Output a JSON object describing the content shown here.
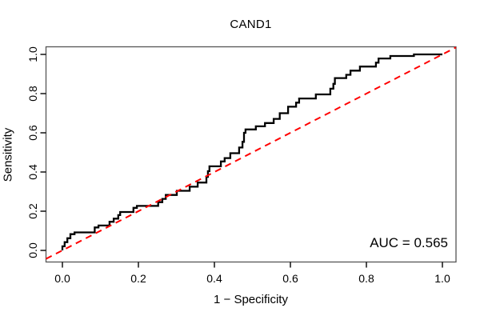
{
  "figure": {
    "title": "CAND1",
    "xlabel": "1 − Specificity",
    "ylabel": "Sensitivity",
    "auc_label": "AUC = 0.565"
  },
  "chart_data": {
    "type": "line",
    "subtype": "roc-curve-step",
    "title": "CAND1",
    "xlabel": "1 − Specificity",
    "ylabel": "Sensitivity",
    "xlim": [
      0,
      1
    ],
    "ylim": [
      0,
      1
    ],
    "grid": false,
    "legend": "none",
    "x_ticks": [
      0.0,
      0.2,
      0.4,
      0.6,
      0.8,
      1.0
    ],
    "y_ticks": [
      0.0,
      0.2,
      0.4,
      0.6,
      0.8,
      1.0
    ],
    "x_tick_labels": [
      "0.0",
      "0.2",
      "0.4",
      "0.6",
      "0.8",
      "1.0"
    ],
    "y_tick_labels": [
      "0.0",
      "0.2",
      "0.4",
      "0.6",
      "0.8",
      "1.0"
    ],
    "annotations": [
      {
        "text": "AUC = 0.565",
        "x": 1.0,
        "y": 0.05,
        "align": "right"
      }
    ],
    "auc": 0.565,
    "series": [
      {
        "name": "ROC curve (CAND1)",
        "style": "step",
        "color": "#000000",
        "line_width": 2.3,
        "dash": null,
        "points": [
          [
            0.0,
            0.0
          ],
          [
            0.0,
            0.021
          ],
          [
            0.006,
            0.021
          ],
          [
            0.006,
            0.042
          ],
          [
            0.013,
            0.042
          ],
          [
            0.013,
            0.062
          ],
          [
            0.021,
            0.062
          ],
          [
            0.021,
            0.083
          ],
          [
            0.032,
            0.083
          ],
          [
            0.032,
            0.092
          ],
          [
            0.085,
            0.092
          ],
          [
            0.085,
            0.117
          ],
          [
            0.095,
            0.117
          ],
          [
            0.095,
            0.127
          ],
          [
            0.124,
            0.127
          ],
          [
            0.124,
            0.146
          ],
          [
            0.135,
            0.146
          ],
          [
            0.135,
            0.162
          ],
          [
            0.147,
            0.162
          ],
          [
            0.147,
            0.18
          ],
          [
            0.152,
            0.18
          ],
          [
            0.152,
            0.196
          ],
          [
            0.187,
            0.196
          ],
          [
            0.187,
            0.217
          ],
          [
            0.196,
            0.217
          ],
          [
            0.196,
            0.227
          ],
          [
            0.252,
            0.227
          ],
          [
            0.252,
            0.246
          ],
          [
            0.263,
            0.246
          ],
          [
            0.263,
            0.263
          ],
          [
            0.272,
            0.263
          ],
          [
            0.272,
            0.283
          ],
          [
            0.301,
            0.283
          ],
          [
            0.301,
            0.304
          ],
          [
            0.335,
            0.304
          ],
          [
            0.335,
            0.325
          ],
          [
            0.356,
            0.325
          ],
          [
            0.356,
            0.346
          ],
          [
            0.379,
            0.346
          ],
          [
            0.379,
            0.375
          ],
          [
            0.383,
            0.375
          ],
          [
            0.383,
            0.404
          ],
          [
            0.387,
            0.404
          ],
          [
            0.387,
            0.429
          ],
          [
            0.417,
            0.429
          ],
          [
            0.417,
            0.454
          ],
          [
            0.427,
            0.454
          ],
          [
            0.427,
            0.471
          ],
          [
            0.442,
            0.471
          ],
          [
            0.442,
            0.496
          ],
          [
            0.465,
            0.496
          ],
          [
            0.465,
            0.525
          ],
          [
            0.474,
            0.525
          ],
          [
            0.474,
            0.554
          ],
          [
            0.478,
            0.554
          ],
          [
            0.478,
            0.6
          ],
          [
            0.482,
            0.6
          ],
          [
            0.482,
            0.617
          ],
          [
            0.509,
            0.617
          ],
          [
            0.509,
            0.633
          ],
          [
            0.533,
            0.633
          ],
          [
            0.533,
            0.65
          ],
          [
            0.556,
            0.65
          ],
          [
            0.556,
            0.671
          ],
          [
            0.572,
            0.671
          ],
          [
            0.572,
            0.7
          ],
          [
            0.594,
            0.7
          ],
          [
            0.594,
            0.733
          ],
          [
            0.615,
            0.733
          ],
          [
            0.615,
            0.754
          ],
          [
            0.623,
            0.754
          ],
          [
            0.623,
            0.775
          ],
          [
            0.667,
            0.775
          ],
          [
            0.667,
            0.796
          ],
          [
            0.705,
            0.796
          ],
          [
            0.705,
            0.825
          ],
          [
            0.713,
            0.825
          ],
          [
            0.713,
            0.85
          ],
          [
            0.717,
            0.85
          ],
          [
            0.717,
            0.879
          ],
          [
            0.747,
            0.879
          ],
          [
            0.747,
            0.896
          ],
          [
            0.758,
            0.896
          ],
          [
            0.758,
            0.917
          ],
          [
            0.783,
            0.917
          ],
          [
            0.783,
            0.938
          ],
          [
            0.825,
            0.938
          ],
          [
            0.825,
            0.958
          ],
          [
            0.832,
            0.958
          ],
          [
            0.832,
            0.979
          ],
          [
            0.863,
            0.979
          ],
          [
            0.863,
            0.992
          ],
          [
            0.925,
            0.992
          ],
          [
            0.925,
            1.0
          ],
          [
            1.0,
            1.0
          ]
        ]
      },
      {
        "name": "Chance diagonal",
        "style": "dashed",
        "color": "#FF0000",
        "line_width": 2,
        "dash": [
          8,
          6
        ],
        "points": [
          [
            0,
            0
          ],
          [
            1,
            1
          ]
        ]
      }
    ]
  },
  "colors": {
    "background": "#FFFFFF",
    "curve": "#000000",
    "reference_line": "#FF0000",
    "box": "#555555",
    "text": "#000000"
  }
}
